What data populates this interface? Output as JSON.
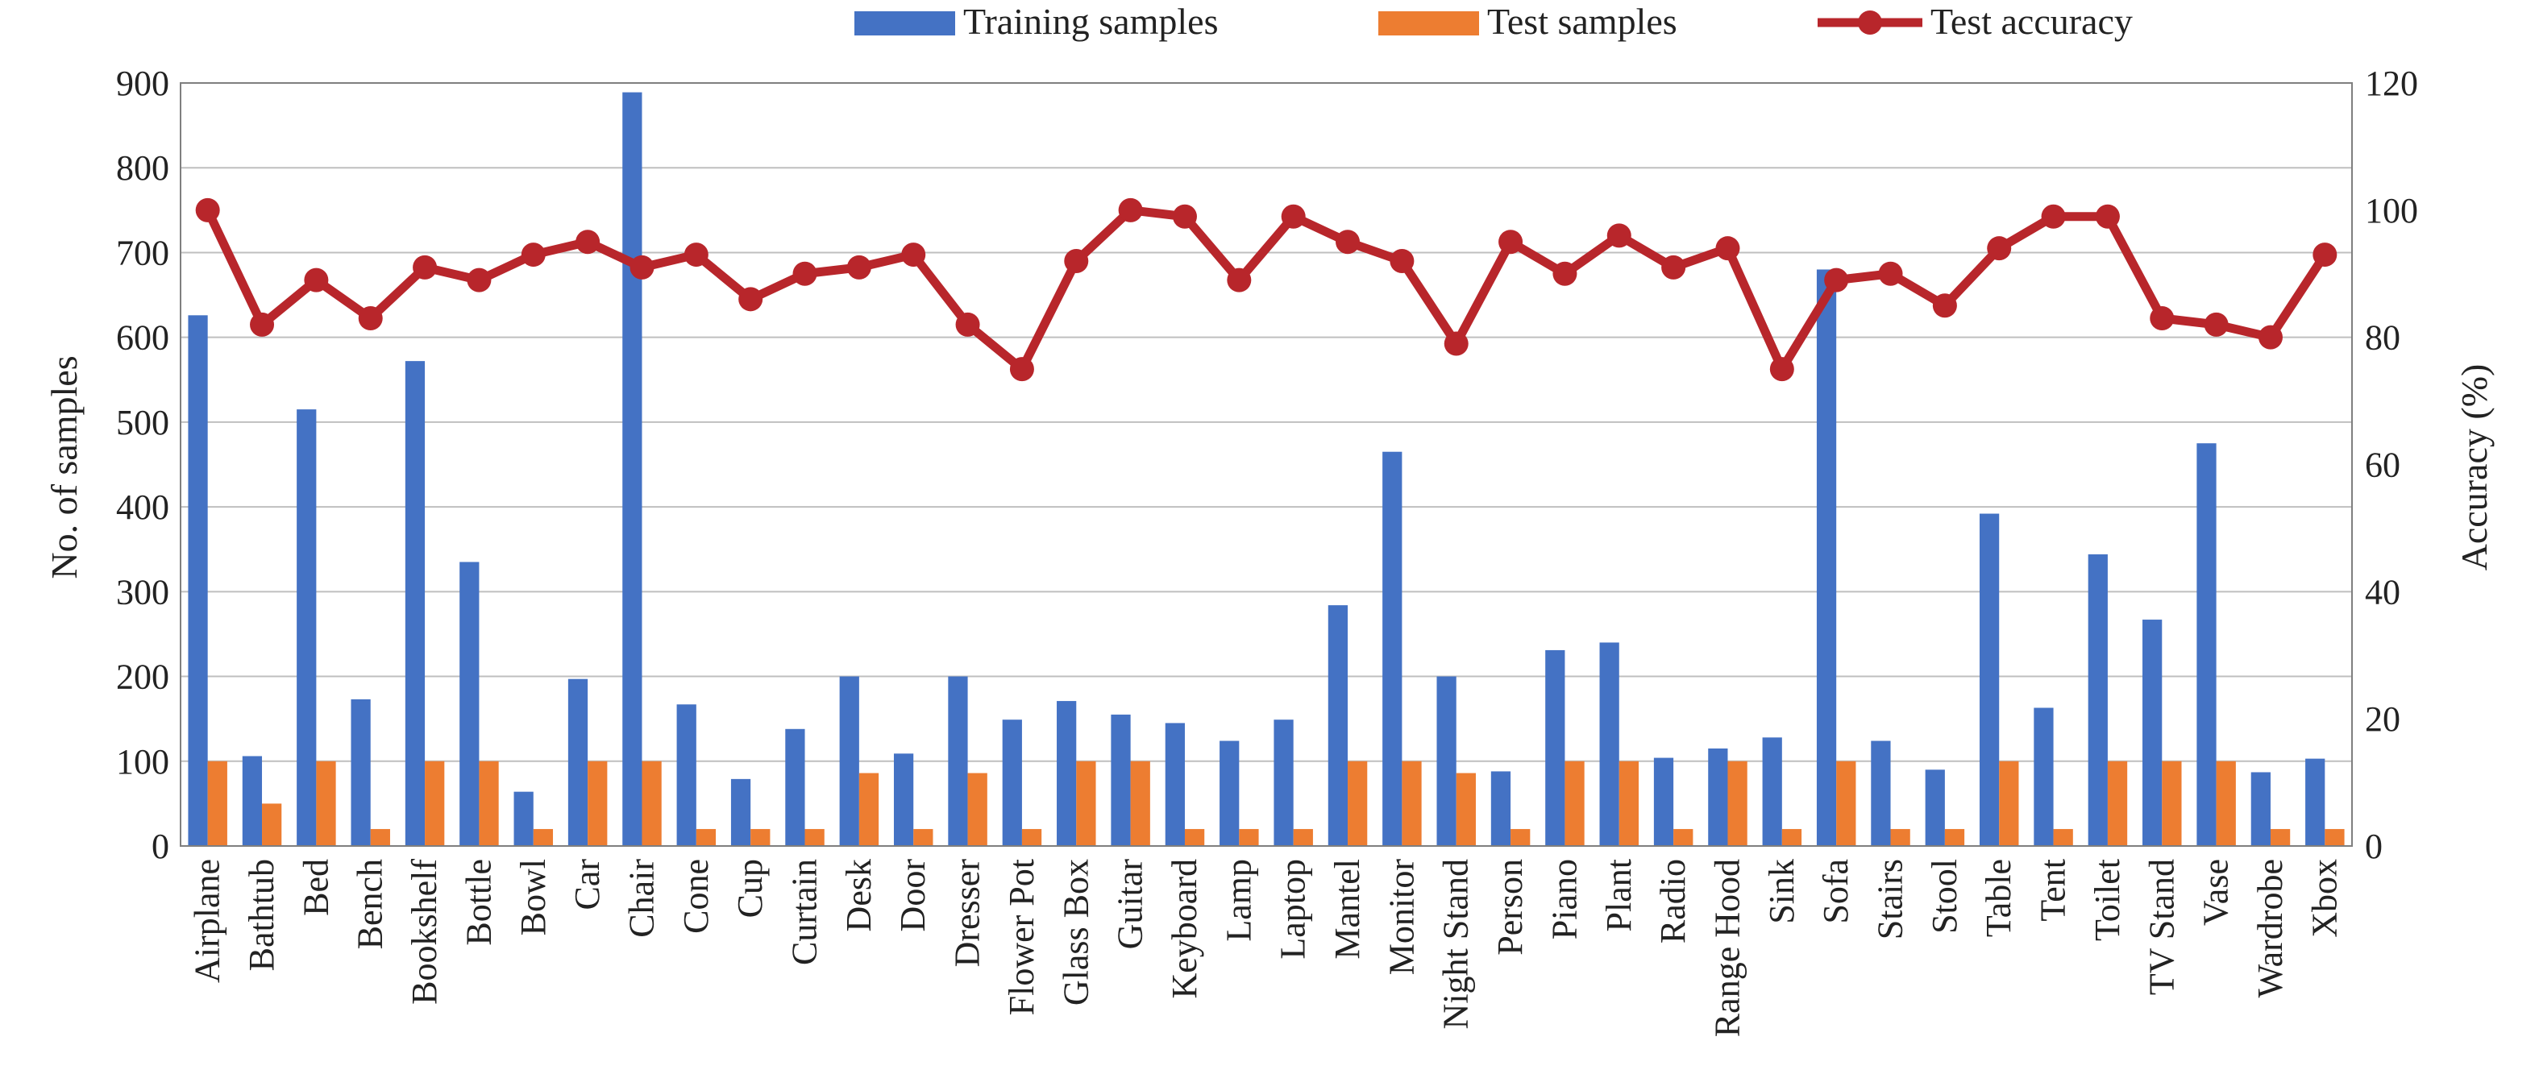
{
  "chart_data": {
    "type": "bar",
    "categories": [
      "Airplane",
      "Bathtub",
      "Bed",
      "Bench",
      "Bookshelf",
      "Bottle",
      "Bowl",
      "Car",
      "Chair",
      "Cone",
      "Cup",
      "Curtain",
      "Desk",
      "Door",
      "Dresser",
      "Flower Pot",
      "Glass Box",
      "Guitar",
      "Keyboard",
      "Lamp",
      "Laptop",
      "Mantel",
      "Monitor",
      "Night Stand",
      "Person",
      "Piano",
      "Plant",
      "Radio",
      "Range Hood",
      "Sink",
      "Sofa",
      "Stairs",
      "Stool",
      "Table",
      "Tent",
      "Toilet",
      "TV Stand",
      "Vase",
      "Wardrobe",
      "Xbox"
    ],
    "series": [
      {
        "name": "Training samples",
        "type": "bar",
        "axis": "left",
        "color": "#4472C4",
        "values": [
          626,
          106,
          515,
          173,
          572,
          335,
          64,
          197,
          889,
          167,
          79,
          138,
          200,
          109,
          200,
          149,
          171,
          155,
          145,
          124,
          149,
          284,
          465,
          200,
          88,
          231,
          240,
          104,
          115,
          128,
          680,
          124,
          90,
          392,
          163,
          344,
          267,
          475,
          87,
          103
        ]
      },
      {
        "name": "Test samples",
        "type": "bar",
        "axis": "left",
        "color": "#ED7D31",
        "values": [
          100,
          50,
          100,
          20,
          100,
          100,
          20,
          100,
          100,
          20,
          20,
          20,
          86,
          20,
          86,
          20,
          100,
          100,
          20,
          20,
          20,
          100,
          100,
          86,
          20,
          100,
          100,
          20,
          100,
          20,
          100,
          20,
          20,
          100,
          20,
          100,
          100,
          100,
          20,
          20
        ]
      },
      {
        "name": "Test accuracy",
        "type": "line",
        "axis": "right",
        "color": "#B8262B",
        "values": [
          100,
          82,
          89,
          83,
          91,
          89,
          93,
          95,
          91,
          93,
          86,
          90,
          91,
          93,
          82,
          75,
          92,
          100,
          99,
          89,
          99,
          95,
          92,
          79,
          95,
          90,
          96,
          91,
          94,
          75,
          89,
          90,
          85,
          94,
          99,
          99,
          83,
          82,
          80,
          93
        ]
      }
    ],
    "ylabel": "No. of samples",
    "ylim": [
      0,
      900
    ],
    "yticks": [
      0,
      100,
      200,
      300,
      400,
      500,
      600,
      700,
      800,
      900
    ],
    "y2label": "Accuracy (%)",
    "y2lim": [
      0,
      120
    ],
    "y2ticks": [
      0,
      20,
      40,
      60,
      80,
      100,
      120
    ],
    "grid": true,
    "legend_position": "top"
  }
}
